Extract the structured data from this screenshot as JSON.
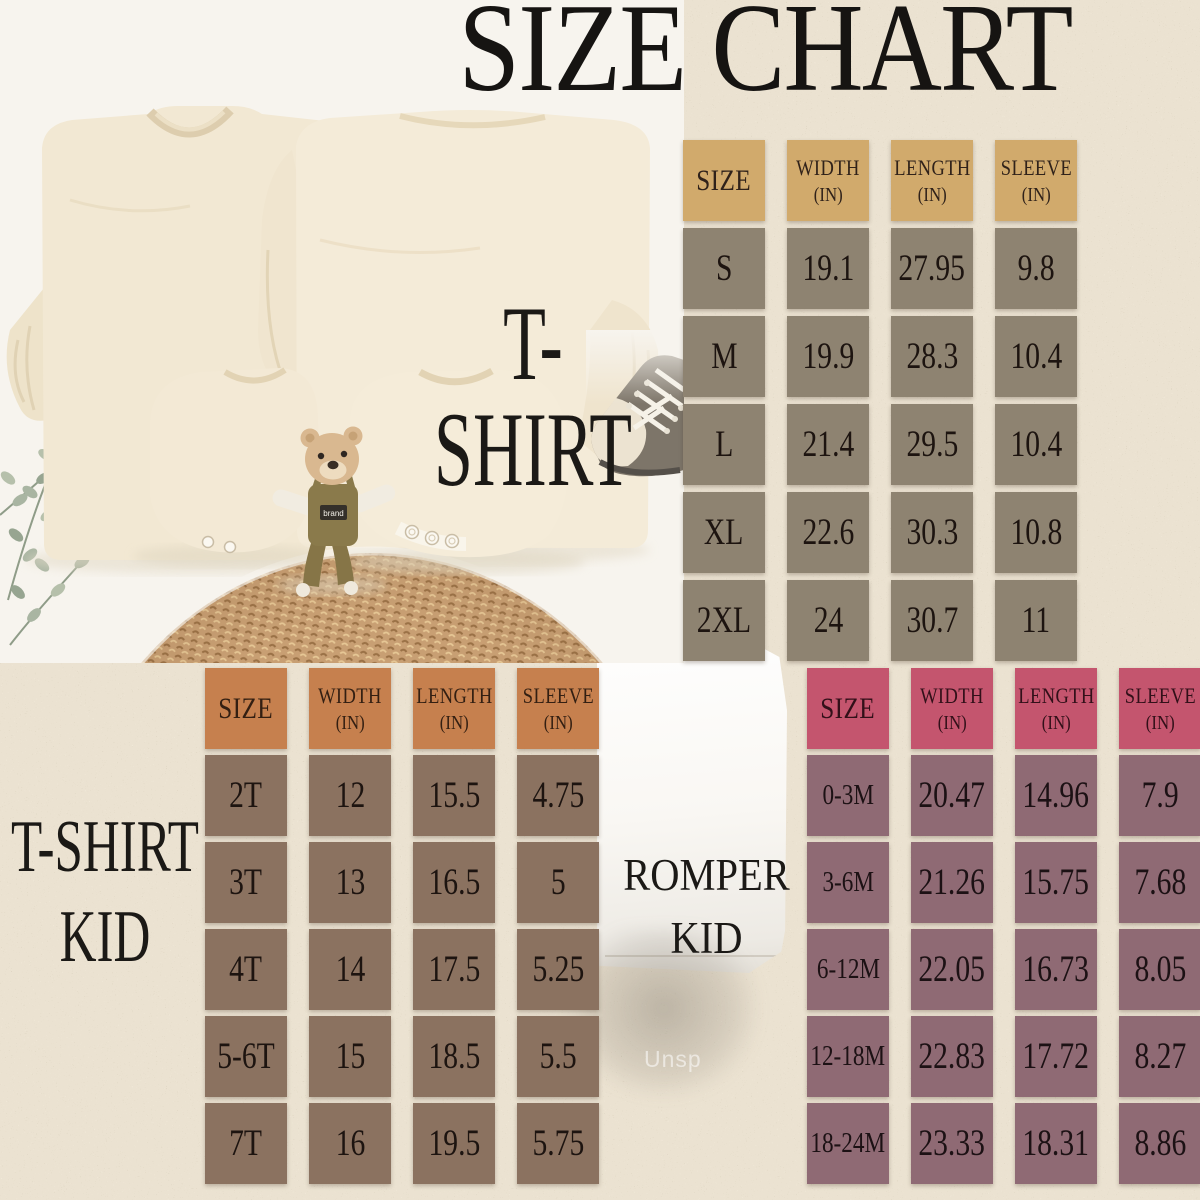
{
  "page": {
    "title": "SIZE CHART",
    "background_color": "#eae1d0",
    "watermark": "Unsp"
  },
  "labels": {
    "tshirt": "T-SHIRT",
    "tshirt_kid_line1": "T-SHIRT",
    "tshirt_kid_line2": "KID",
    "romper_kid_line1": "ROMPER",
    "romper_kid_line2": "KID"
  },
  "photo": {
    "bear_tag": "brand"
  },
  "tables": [
    {
      "id": "tshirt-adult",
      "columns": [
        {
          "label": "SIZE"
        },
        {
          "label": "WIDTH",
          "unit": "(IN)"
        },
        {
          "label": "LENGTH",
          "unit": "(IN)"
        },
        {
          "label": "SLEEVE",
          "unit": "(IN)"
        }
      ],
      "rows": [
        [
          "S",
          "19.1",
          "27.95",
          "9.8"
        ],
        [
          "M",
          "19.9",
          "28.3",
          "10.4"
        ],
        [
          "L",
          "21.4",
          "29.5",
          "10.4"
        ],
        [
          "XL",
          "22.6",
          "30.3",
          "10.8"
        ],
        [
          "2XL",
          "24",
          "30.7",
          "11"
        ]
      ],
      "colors": {
        "header_bg": "#d1aa6c",
        "header_text": "#30221a",
        "cell_bg": "#8e8371",
        "cell_text": "#1d1410"
      }
    },
    {
      "id": "tshirt-kid",
      "columns": [
        {
          "label": "SIZE"
        },
        {
          "label": "WIDTH",
          "unit": "(IN)"
        },
        {
          "label": "LENGTH",
          "unit": "(IN)"
        },
        {
          "label": "SLEEVE",
          "unit": "(IN)"
        }
      ],
      "rows": [
        [
          "2T",
          "12",
          "15.5",
          "4.75"
        ],
        [
          "3T",
          "13",
          "16.5",
          "5"
        ],
        [
          "4T",
          "14",
          "17.5",
          "5.25"
        ],
        [
          "5-6T",
          "15",
          "18.5",
          "5.5"
        ],
        [
          "7T",
          "16",
          "19.5",
          "5.75"
        ]
      ],
      "colors": {
        "header_bg": "#c6804e",
        "header_text": "#331f12",
        "cell_bg": "#8b7260",
        "cell_text": "#1d1410"
      }
    },
    {
      "id": "romper-kid",
      "columns": [
        {
          "label": "SIZE"
        },
        {
          "label": "WIDTH",
          "unit": "(IN)"
        },
        {
          "label": "LENGTH",
          "unit": "(IN)"
        },
        {
          "label": "SLEEVE",
          "unit": "(IN)"
        }
      ],
      "rows": [
        [
          "0-3M",
          "20.47",
          "14.96",
          "7.9"
        ],
        [
          "3-6M",
          "21.26",
          "15.75",
          "7.68"
        ],
        [
          "6-12M",
          "22.05",
          "16.73",
          "8.05"
        ],
        [
          "12-18M",
          "22.83",
          "17.72",
          "8.27"
        ],
        [
          "18-24M",
          "23.33",
          "18.31",
          "8.86"
        ]
      ],
      "colors": {
        "header_bg": "#c4556e",
        "header_text": "#321019",
        "cell_bg": "#8f6a74",
        "cell_text": "#1c1114"
      }
    }
  ]
}
